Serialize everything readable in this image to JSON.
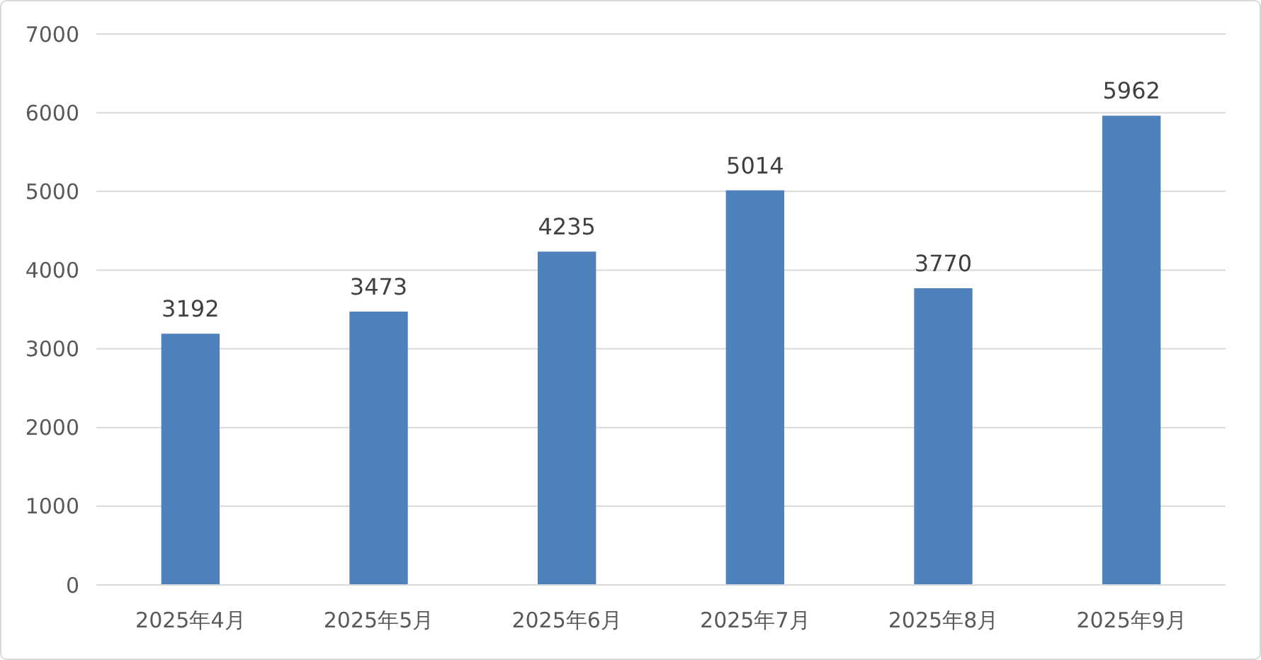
{
  "chart_data": {
    "type": "bar",
    "categories": [
      "2025年4月",
      "2025年5月",
      "2025年6月",
      "2025年7月",
      "2025年8月",
      "2025年9月"
    ],
    "values": [
      3192,
      3473,
      4235,
      5014,
      3770,
      5962
    ],
    "color": "#4f81bd",
    "ylim": [
      0,
      7000
    ],
    "yticks": [
      0,
      1000,
      2000,
      3000,
      4000,
      5000,
      6000,
      7000
    ],
    "grid": "y",
    "data_labels": true
  }
}
